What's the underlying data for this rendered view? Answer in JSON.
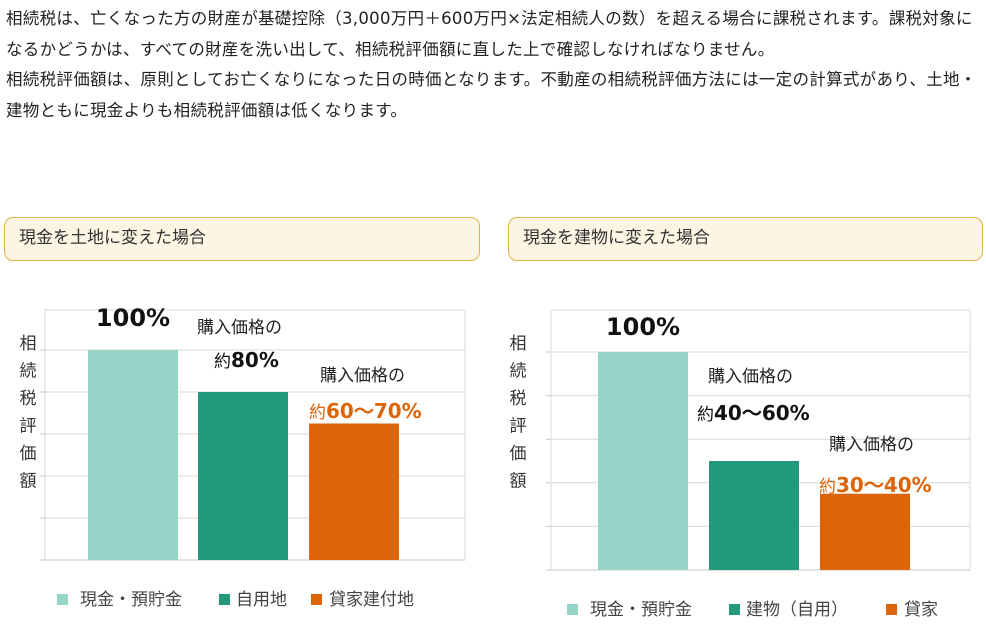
{
  "intro": {
    "paragraph1": "相続税は、亡くなった方の財産が基礎控除（3,000万円＋600万円×法定相続人の数）を超える場合に課税されます。課税対象になるかどうかは、すべての財産を洗い出して、相続税評価額に直した上で確認しなければなりません。",
    "paragraph2": "相続税評価額は、原則としてお亡くなりになった日の時価となります。不動産の相続税評価方法には一定の計算式があり、土地・建物ともに現金よりも相続税評価額は低くなります。"
  },
  "colors": {
    "cash": "#97d4c8",
    "green": "#23997b",
    "orange": "#dd6509",
    "box_border": "#e3b24a",
    "box_fill": "#fdf5e3"
  },
  "chart_data": [
    {
      "type": "bar",
      "title": "現金を土地に変えた場合",
      "ylabel": "相続税評価額",
      "categories": [
        "現金・預貯金",
        "自用地",
        "貸家建付地"
      ],
      "values": [
        100,
        80,
        65
      ],
      "data_labels": [
        {
          "prefix": "",
          "value": "100%"
        },
        {
          "prefix": "購入価格の",
          "value": "約80%"
        },
        {
          "prefix": "購入価格の",
          "value": "約60～70%"
        }
      ],
      "ylim": [
        0,
        100
      ],
      "grid": true,
      "legend_position": "bottom"
    },
    {
      "type": "bar",
      "title": "現金を建物に変えた場合",
      "ylabel": "相続税評価額",
      "categories": [
        "現金・預貯金",
        "建物（自用）",
        "貸家"
      ],
      "values": [
        100,
        50,
        35
      ],
      "data_labels": [
        {
          "prefix": "",
          "value": "100%"
        },
        {
          "prefix": "購入価格の",
          "value": "約40～60%"
        },
        {
          "prefix": "購入価格の",
          "value": "約30～40%"
        }
      ],
      "ylim": [
        0,
        100
      ],
      "grid": true,
      "legend_position": "bottom"
    }
  ]
}
